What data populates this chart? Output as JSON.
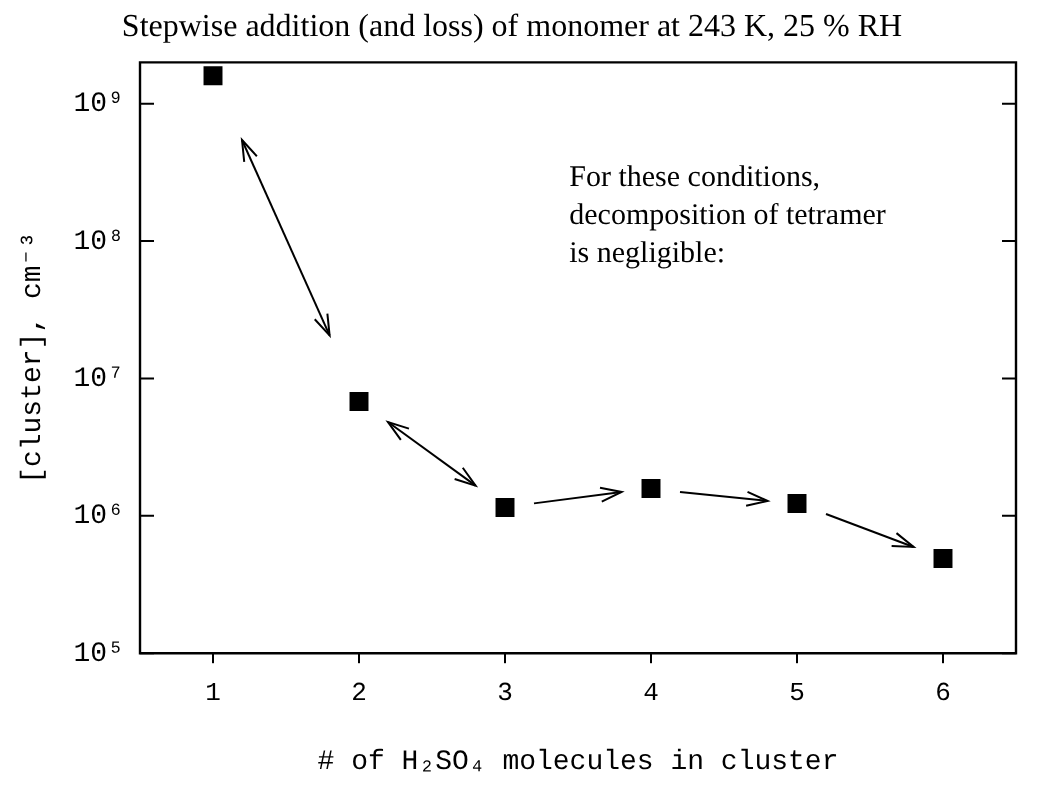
{
  "chart_data": {
    "type": "scatter",
    "title": "Stepwise addition (and loss) of monomer at 243 K, 25 % RH",
    "xlabel": "# of H₂SO₄ molecules in cluster",
    "ylabel": "[cluster], cm⁻³",
    "x": [
      1,
      2,
      3,
      4,
      5,
      6
    ],
    "series": [
      {
        "color": "#000000",
        "values": [
          1600000000.0,
          6800000.0,
          1150000.0,
          1580000.0,
          1230000.0,
          490000.0
        ]
      }
    ],
    "xlim": [
      0.5,
      6.5
    ],
    "xticks": [
      1,
      2,
      3,
      4,
      5,
      6
    ],
    "ylim": [
      100000.0,
      2000000000.0
    ],
    "log": "y",
    "yticks": [
      {
        "value": 100000,
        "label": "10⁵"
      },
      {
        "value": 1000000,
        "label": "10⁶"
      },
      {
        "value": 10000000,
        "label": "10⁷"
      },
      {
        "value": 100000000,
        "label": "10⁸"
      },
      {
        "value": 1000000000,
        "label": "10⁹"
      }
    ],
    "annotations": [
      "For these conditions,\ndecomposition of tetramer\nis negligible:"
    ],
    "marker": "square",
    "grid": false,
    "legend": false
  }
}
